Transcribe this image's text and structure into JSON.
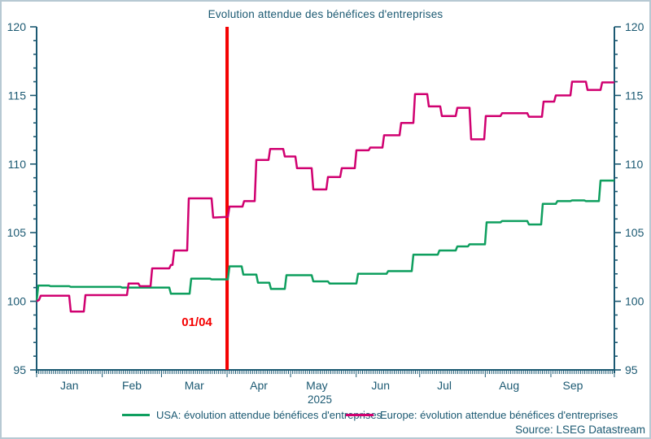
{
  "title": "Evolution attendue des bénéfices d'entreprises",
  "source": "Source: LSEG Datastream",
  "colors": {
    "text_axis": "#1b5972",
    "usa_line": "#0f9f5f",
    "europe_line": "#d00070",
    "event_line": "#f40000",
    "frame_border": "#b7c9d3"
  },
  "annotation": {
    "label": "01/04"
  },
  "chart_data": {
    "type": "line",
    "title": "Evolution attendue des bénéfices d'entreprises",
    "x_unit": "px along time axis (45=Jan 1 2025, 755=Sep 30 2025)",
    "x_axis": {
      "year": "2025",
      "months": [
        "Jan",
        "Feb",
        "Mar",
        "Apr",
        "May",
        "Jun",
        "Jul",
        "Aug",
        "Sep"
      ],
      "month_days": [
        31,
        28,
        31,
        30,
        31,
        30,
        31,
        31,
        30
      ]
    },
    "y_axis": {
      "min": 95,
      "max": 120,
      "major_ticks": [
        95,
        100,
        105,
        110,
        115,
        120
      ],
      "minor_step": 1,
      "grid": false
    },
    "vline": {
      "label": "01/04",
      "date_day_index": 90,
      "color": "#f40000"
    },
    "legend_position": "bottom",
    "series": [
      {
        "name": "USA: évolution attendue bénéfices d'entreprises",
        "color": "#0f9f5f",
        "points": [
          [
            45,
            100.0
          ],
          [
            47,
            101.15
          ],
          [
            60,
            101.15
          ],
          [
            62,
            101.1
          ],
          [
            85,
            101.1
          ],
          [
            87,
            101.05
          ],
          [
            148,
            101.05
          ],
          [
            150,
            101.0
          ],
          [
            208,
            101.0
          ],
          [
            210,
            100.55
          ],
          [
            233,
            100.55
          ],
          [
            235,
            101.65
          ],
          [
            258,
            101.65
          ],
          [
            260,
            101.6
          ],
          [
            280,
            101.6
          ],
          [
            282,
            102.55
          ],
          [
            297,
            102.55
          ],
          [
            299,
            101.95
          ],
          [
            315,
            101.95
          ],
          [
            317,
            101.35
          ],
          [
            331,
            101.35
          ],
          [
            333,
            100.9
          ],
          [
            350,
            100.9
          ],
          [
            352,
            101.9
          ],
          [
            383,
            101.9
          ],
          [
            385,
            101.45
          ],
          [
            403,
            101.45
          ],
          [
            405,
            101.3
          ],
          [
            438,
            101.3
          ],
          [
            440,
            102.0
          ],
          [
            475,
            102.0
          ],
          [
            477,
            102.2
          ],
          [
            506,
            102.2
          ],
          [
            508,
            103.4
          ],
          [
            538,
            103.4
          ],
          [
            540,
            103.7
          ],
          [
            560,
            103.7
          ],
          [
            562,
            104.0
          ],
          [
            575,
            104.0
          ],
          [
            577,
            104.15
          ],
          [
            596,
            104.15
          ],
          [
            598,
            105.75
          ],
          [
            615,
            105.75
          ],
          [
            617,
            105.85
          ],
          [
            648,
            105.85
          ],
          [
            650,
            105.6
          ],
          [
            665,
            105.6
          ],
          [
            667,
            107.1
          ],
          [
            683,
            107.1
          ],
          [
            685,
            107.3
          ],
          [
            701,
            107.3
          ],
          [
            703,
            107.35
          ],
          [
            718,
            107.35
          ],
          [
            720,
            107.3
          ],
          [
            736,
            107.3
          ],
          [
            738,
            108.8
          ],
          [
            755,
            108.8
          ]
        ]
      },
      {
        "name": "Europe: évolution attendue bénéfices d'entreprises",
        "color": "#d00070",
        "points": [
          [
            45,
            100.0
          ],
          [
            48,
            100.1
          ],
          [
            50,
            100.4
          ],
          [
            85,
            100.4
          ],
          [
            87,
            99.25
          ],
          [
            103,
            99.25
          ],
          [
            105,
            100.45
          ],
          [
            156,
            100.45
          ],
          [
            158,
            101.3
          ],
          [
            170,
            101.3
          ],
          [
            172,
            101.1
          ],
          [
            185,
            101.1
          ],
          [
            187,
            102.4
          ],
          [
            208,
            102.4
          ],
          [
            210,
            102.65
          ],
          [
            212,
            102.65
          ],
          [
            214,
            103.7
          ],
          [
            230,
            103.7
          ],
          [
            232,
            107.5
          ],
          [
            260,
            107.5
          ],
          [
            262,
            106.1
          ],
          [
            280,
            106.15
          ],
          [
            282,
            106.9
          ],
          [
            298,
            106.9
          ],
          [
            300,
            107.3
          ],
          [
            313,
            107.3
          ],
          [
            315,
            110.3
          ],
          [
            330,
            110.3
          ],
          [
            332,
            111.1
          ],
          [
            348,
            111.1
          ],
          [
            350,
            110.55
          ],
          [
            363,
            110.55
          ],
          [
            365,
            109.7
          ],
          [
            383,
            109.7
          ],
          [
            385,
            108.15
          ],
          [
            401,
            108.15
          ],
          [
            403,
            109.05
          ],
          [
            418,
            109.05
          ],
          [
            420,
            109.7
          ],
          [
            436,
            109.7
          ],
          [
            438,
            111.0
          ],
          [
            453,
            111.0
          ],
          [
            455,
            111.2
          ],
          [
            470,
            111.2
          ],
          [
            472,
            112.1
          ],
          [
            491,
            112.1
          ],
          [
            493,
            113.0
          ],
          [
            508,
            113.0
          ],
          [
            510,
            115.1
          ],
          [
            525,
            115.1
          ],
          [
            527,
            114.2
          ],
          [
            541,
            114.2
          ],
          [
            543,
            113.5
          ],
          [
            560,
            113.5
          ],
          [
            562,
            114.1
          ],
          [
            577,
            114.1
          ],
          [
            579,
            111.8
          ],
          [
            595,
            111.8
          ],
          [
            597,
            113.5
          ],
          [
            615,
            113.5
          ],
          [
            617,
            113.7
          ],
          [
            648,
            113.7
          ],
          [
            650,
            113.45
          ],
          [
            666,
            113.45
          ],
          [
            668,
            114.55
          ],
          [
            681,
            114.55
          ],
          [
            683,
            115.0
          ],
          [
            701,
            115.0
          ],
          [
            703,
            116.0
          ],
          [
            720,
            116.0
          ],
          [
            722,
            115.4
          ],
          [
            738,
            115.4
          ],
          [
            740,
            115.95
          ],
          [
            755,
            115.95
          ]
        ]
      }
    ]
  }
}
